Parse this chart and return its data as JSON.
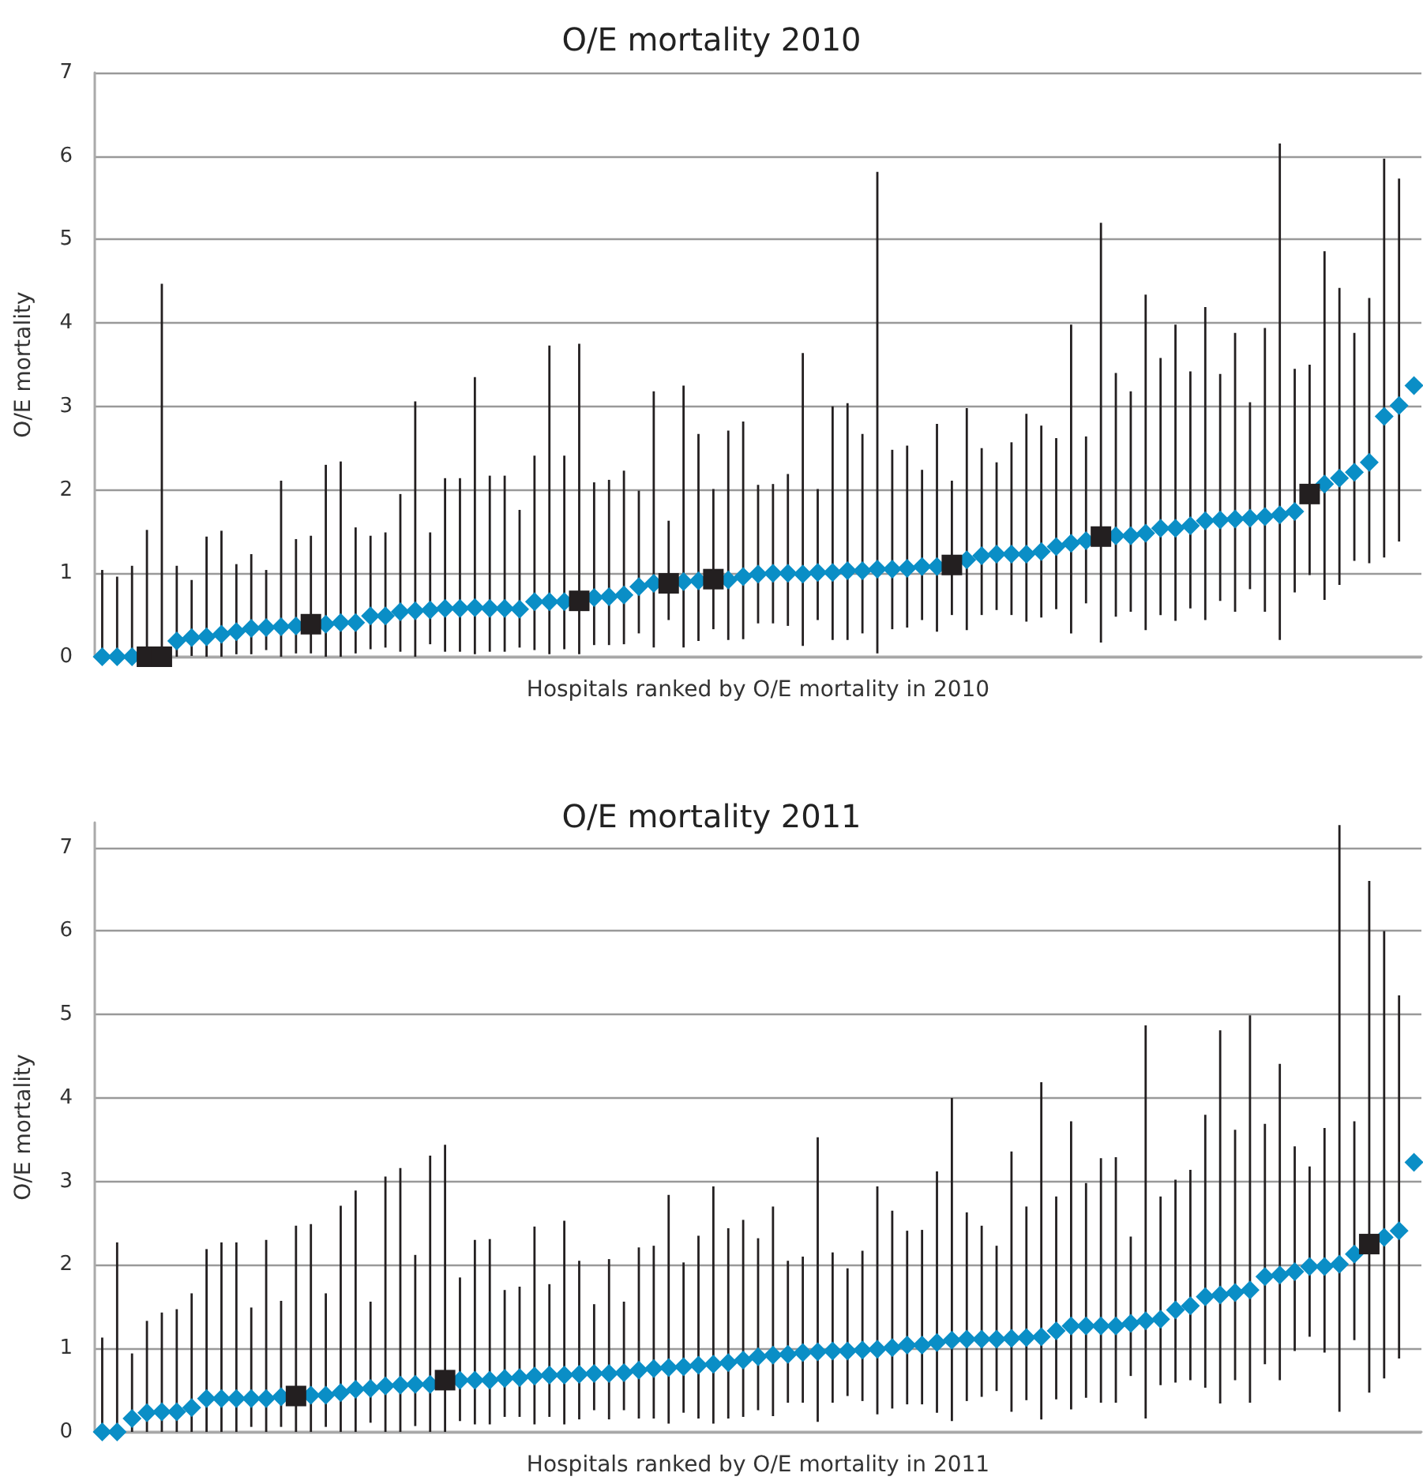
{
  "chart_data": [
    {
      "type": "scatter",
      "title": "O/E mortality 2010",
      "xlabel": "Hospitals ranked by O/E mortality in 2010",
      "ylabel": "O/E mortality",
      "categories": [
        null,
        null,
        null,
        null,
        null,
        null,
        null,
        null,
        null,
        null,
        null,
        null,
        null,
        null,
        null,
        null,
        null,
        null,
        null,
        null,
        null,
        null,
        null,
        null,
        null,
        null,
        null,
        null,
        null,
        null,
        null,
        null,
        null,
        null,
        null,
        null,
        null,
        null,
        null,
        null,
        null,
        null,
        null,
        null,
        null,
        null,
        null,
        null,
        null,
        null,
        null,
        null,
        null,
        null,
        null,
        null,
        null,
        null,
        null,
        null,
        null,
        null,
        null,
        null,
        null,
        null,
        null,
        null,
        null,
        null,
        null,
        null,
        null,
        null,
        null,
        null,
        null,
        null,
        null,
        null,
        null,
        null,
        null,
        null,
        null,
        null,
        null,
        null,
        null
      ],
      "series": [
        {
          "color": "#0a8ec6",
          "marker": "diamond",
          "values": [
            0,
            0,
            0,
            null,
            null,
            0.19,
            0.23,
            0.24,
            0.27,
            0.3,
            0.34,
            0.35,
            0.36,
            0.37,
            null,
            0.39,
            0.41,
            0.41,
            0.49,
            0.49,
            0.54,
            0.55,
            0.56,
            0.58,
            0.58,
            0.59,
            0.58,
            0.58,
            0.57,
            0.66,
            0.66,
            0.66,
            null,
            0.71,
            0.72,
            0.74,
            0.84,
            0.88,
            null,
            0.9,
            0.91,
            null,
            0.92,
            0.96,
            0.99,
            1.0,
            1.0,
            0.99,
            1.01,
            1.01,
            1.03,
            1.03,
            1.05,
            1.05,
            1.06,
            1.08,
            1.08,
            null,
            1.16,
            1.21,
            1.23,
            1.23,
            1.23,
            1.26,
            1.32,
            1.36,
            1.39,
            null,
            1.45,
            1.45,
            1.48,
            1.54,
            1.54,
            1.57,
            1.63,
            1.64,
            1.65,
            1.66,
            1.68,
            1.7,
            1.74,
            null,
            2.07,
            2.14,
            2.21,
            2.33,
            2.88,
            3.01,
            3.25
          ],
          "errors": [
            [
              0,
              1.04
            ],
            [
              0,
              0.96
            ],
            [
              0,
              1.09
            ],
            null,
            null,
            [
              0,
              1.09
            ],
            [
              0.01,
              0.92
            ],
            [
              0,
              1.44
            ],
            [
              0,
              1.51
            ],
            [
              0.03,
              1.11
            ],
            [
              0.03,
              1.23
            ],
            [
              0.08,
              1.04
            ],
            [
              0,
              2.11
            ],
            [
              0.04,
              1.41
            ],
            null,
            [
              0,
              2.3
            ],
            [
              0,
              2.34
            ],
            [
              0.04,
              1.55
            ],
            [
              0.09,
              1.45
            ],
            [
              0.11,
              1.49
            ],
            [
              0.06,
              1.95
            ],
            [
              0,
              3.06
            ],
            [
              0.15,
              1.49
            ],
            [
              0.06,
              2.14
            ],
            [
              0.06,
              2.14
            ],
            [
              0.03,
              3.35
            ],
            [
              0.06,
              2.17
            ],
            [
              0.06,
              2.17
            ],
            [
              0.11,
              1.76
            ],
            [
              0.08,
              2.41
            ],
            [
              0.03,
              3.73
            ],
            [
              0.09,
              2.41
            ],
            null,
            [
              0.14,
              2.09
            ],
            [
              0.14,
              2.12
            ],
            [
              0.15,
              2.23
            ],
            [
              0.28,
              1.99
            ],
            [
              0.11,
              3.18
            ],
            null,
            [
              0.11,
              3.25
            ],
            [
              0.19,
              2.67
            ],
            null,
            [
              0.2,
              2.71
            ],
            [
              0.21,
              2.82
            ],
            [
              0.4,
              2.06
            ],
            [
              0.4,
              2.07
            ],
            [
              0.37,
              2.19
            ],
            [
              0.13,
              3.64
            ],
            [
              0.44,
              2.01
            ],
            [
              0.2,
              3.0
            ],
            [
              0.2,
              3.04
            ],
            [
              0.28,
              2.67
            ],
            [
              0.04,
              5.81
            ],
            [
              0.33,
              2.48
            ],
            [
              0.35,
              2.53
            ],
            [
              0.44,
              2.24
            ],
            [
              0.3,
              2.79
            ],
            null,
            [
              0.32,
              2.98
            ],
            [
              0.5,
              2.5
            ],
            [
              0.56,
              2.33
            ],
            [
              0.5,
              2.57
            ],
            [
              0.42,
              2.91
            ],
            [
              0.47,
              2.77
            ],
            [
              0.57,
              2.62
            ],
            [
              0.28,
              3.98
            ],
            [
              0.64,
              2.64
            ],
            null,
            [
              0.48,
              3.4
            ],
            [
              0.54,
              3.18
            ],
            [
              0.32,
              4.34
            ],
            [
              0.5,
              3.58
            ],
            [
              0.43,
              3.98
            ],
            [
              0.58,
              3.42
            ],
            [
              0.44,
              4.19
            ],
            [
              0.67,
              3.39
            ],
            [
              0.54,
              3.88
            ],
            [
              0.81,
              3.05
            ],
            [
              0.54,
              3.94
            ],
            [
              0.2,
              6.15
            ],
            [
              0.77,
              3.45
            ],
            null,
            [
              0.68,
              4.86
            ],
            [
              0.86,
              4.42
            ],
            [
              1.15,
              3.88
            ],
            [
              1.12,
              4.3
            ],
            [
              1.19,
              5.97
            ],
            [
              1.38,
              5.73
            ],
            null
          ]
        },
        {
          "color": "#231f20",
          "marker": "square",
          "values": [
            null,
            null,
            null,
            0,
            0,
            null,
            null,
            null,
            null,
            null,
            null,
            null,
            null,
            null,
            0.39,
            null,
            null,
            null,
            null,
            null,
            null,
            null,
            null,
            null,
            null,
            null,
            null,
            null,
            null,
            null,
            null,
            null,
            0.67,
            null,
            null,
            null,
            null,
            null,
            0.88,
            null,
            null,
            0.93,
            null,
            null,
            null,
            null,
            null,
            null,
            null,
            null,
            null,
            null,
            null,
            null,
            null,
            null,
            null,
            1.1,
            null,
            null,
            null,
            null,
            null,
            null,
            null,
            null,
            null,
            1.44,
            null,
            null,
            null,
            null,
            null,
            null,
            null,
            null,
            null,
            null,
            null,
            null,
            null,
            1.95,
            null,
            null,
            null,
            null,
            null,
            null,
            null
          ],
          "errors": [
            null,
            null,
            null,
            [
              0,
              1.52
            ],
            [
              0,
              4.47
            ],
            null,
            null,
            null,
            null,
            null,
            null,
            null,
            null,
            null,
            [
              0.04,
              1.45
            ],
            null,
            null,
            null,
            null,
            null,
            null,
            null,
            null,
            null,
            null,
            null,
            null,
            null,
            null,
            null,
            null,
            null,
            [
              0.03,
              3.75
            ],
            null,
            null,
            null,
            null,
            null,
            [
              0.44,
              1.63
            ],
            null,
            null,
            [
              0.33,
              2.01
            ],
            null,
            null,
            null,
            null,
            null,
            null,
            null,
            null,
            null,
            null,
            null,
            null,
            null,
            null,
            null,
            [
              0.5,
              2.11
            ],
            null,
            null,
            null,
            null,
            null,
            null,
            null,
            null,
            null,
            [
              0.17,
              5.2
            ],
            null,
            null,
            null,
            null,
            null,
            null,
            null,
            null,
            null,
            null,
            null,
            null,
            null,
            [
              0.98,
              3.5
            ],
            null,
            null,
            null,
            null,
            null,
            null,
            null
          ]
        }
      ],
      "ylim": [
        0,
        7
      ],
      "yticks": [
        0,
        1,
        2,
        3,
        4,
        5,
        6,
        7
      ],
      "grid": "y",
      "tick_labels": "y"
    },
    {
      "type": "scatter",
      "title": "O/E mortality 2011",
      "xlabel": "Hospitals ranked by O/E mortality in 2011",
      "ylabel": "O/E mortality",
      "categories": [
        null,
        null,
        null,
        null,
        null,
        null,
        null,
        null,
        null,
        null,
        null,
        null,
        null,
        null,
        null,
        null,
        null,
        null,
        null,
        null,
        null,
        null,
        null,
        null,
        null,
        null,
        null,
        null,
        null,
        null,
        null,
        null,
        null,
        null,
        null,
        null,
        null,
        null,
        null,
        null,
        null,
        null,
        null,
        null,
        null,
        null,
        null,
        null,
        null,
        null,
        null,
        null,
        null,
        null,
        null,
        null,
        null,
        null,
        null,
        null,
        null,
        null,
        null,
        null,
        null,
        null,
        null,
        null,
        null,
        null,
        null,
        null,
        null,
        null,
        null,
        null,
        null,
        null,
        null,
        null,
        null,
        null,
        null,
        null,
        null,
        null,
        null,
        null,
        null
      ],
      "series": [
        {
          "color": "#0a8ec6",
          "marker": "diamond",
          "values": [
            0,
            0,
            0.16,
            0.23,
            0.24,
            0.24,
            0.29,
            0.4,
            0.4,
            0.4,
            0.4,
            0.4,
            0.42,
            null,
            0.44,
            0.44,
            0.47,
            0.51,
            0.52,
            0.55,
            0.56,
            0.57,
            0.57,
            null,
            0.62,
            0.62,
            0.62,
            0.64,
            0.65,
            0.67,
            0.68,
            0.68,
            0.69,
            0.7,
            0.7,
            0.71,
            0.74,
            0.76,
            0.77,
            0.78,
            0.8,
            0.81,
            0.83,
            0.86,
            0.9,
            0.92,
            0.93,
            0.95,
            0.96,
            0.97,
            0.97,
            0.98,
            0.99,
            1.01,
            1.04,
            1.04,
            1.07,
            1.1,
            1.11,
            1.11,
            1.11,
            1.12,
            1.13,
            1.14,
            1.21,
            1.27,
            1.27,
            1.27,
            1.27,
            1.3,
            1.33,
            1.35,
            1.46,
            1.51,
            1.62,
            1.64,
            1.67,
            1.7,
            1.86,
            1.88,
            1.92,
            1.98,
            1.98,
            2.01,
            2.13,
            null,
            2.33,
            2.41,
            3.23
          ],
          "errors": [
            [
              0,
              1.13
            ],
            [
              0,
              2.27
            ],
            [
              0,
              0.94
            ],
            [
              0,
              1.33
            ],
            [
              0,
              1.43
            ],
            [
              0,
              1.47
            ],
            [
              0,
              1.66
            ],
            [
              0,
              2.19
            ],
            [
              0,
              2.27
            ],
            [
              0,
              2.27
            ],
            [
              0.06,
              1.49
            ],
            [
              0,
              2.3
            ],
            [
              0.06,
              1.57
            ],
            null,
            [
              0,
              2.49
            ],
            [
              0.06,
              1.66
            ],
            [
              0,
              2.71
            ],
            [
              0,
              2.89
            ],
            [
              0.11,
              1.56
            ],
            [
              0,
              3.06
            ],
            [
              0,
              3.16
            ],
            [
              0.07,
              2.12
            ],
            [
              0,
              3.31
            ],
            null,
            [
              0.13,
              1.85
            ],
            [
              0.09,
              2.3
            ],
            [
              0.09,
              2.31
            ],
            [
              0.18,
              1.7
            ],
            [
              0.18,
              1.74
            ],
            [
              0.09,
              2.46
            ],
            [
              0.18,
              1.77
            ],
            [
              0.09,
              2.53
            ],
            [
              0.15,
              2.05
            ],
            [
              0.26,
              1.53
            ],
            [
              0.15,
              2.07
            ],
            [
              0.26,
              1.56
            ],
            [
              0.16,
              2.21
            ],
            [
              0.16,
              2.23
            ],
            [
              0.1,
              2.84
            ],
            [
              0.23,
              2.03
            ],
            [
              0.16,
              2.35
            ],
            [
              0.1,
              2.94
            ],
            [
              0.16,
              2.44
            ],
            [
              0.18,
              2.54
            ],
            [
              0.26,
              2.32
            ],
            [
              0.19,
              2.7
            ],
            [
              0.35,
              2.05
            ],
            [
              0.35,
              2.1
            ],
            [
              0.12,
              3.53
            ],
            [
              0.35,
              2.15
            ],
            [
              0.43,
              1.96
            ],
            [
              0.37,
              2.17
            ],
            [
              0.21,
              2.94
            ],
            [
              0.28,
              2.65
            ],
            [
              0.33,
              2.41
            ],
            [
              0.33,
              2.42
            ],
            [
              0.23,
              3.12
            ],
            [
              0.13,
              4.0
            ],
            [
              0.37,
              2.63
            ],
            [
              0.42,
              2.47
            ],
            [
              0.49,
              2.23
            ],
            [
              0.24,
              3.36
            ],
            [
              0.38,
              2.7
            ],
            [
              0.15,
              4.19
            ],
            [
              0.39,
              2.82
            ],
            [
              0.27,
              3.72
            ],
            [
              0.41,
              2.98
            ],
            [
              0.35,
              3.28
            ],
            [
              0.35,
              3.29
            ],
            [
              0.67,
              2.34
            ],
            [
              0.16,
              4.87
            ],
            [
              0.56,
              2.82
            ],
            [
              0.59,
              3.02
            ],
            [
              0.62,
              3.14
            ],
            [
              0.53,
              3.8
            ],
            [
              0.34,
              4.81
            ],
            [
              0.62,
              3.62
            ],
            [
              0.35,
              4.99
            ],
            [
              0.81,
              3.69
            ],
            [
              0.62,
              4.41
            ],
            [
              0.97,
              3.42
            ],
            [
              1.14,
              3.18
            ],
            [
              0.95,
              3.64
            ],
            [
              0.24,
              7.27
            ],
            [
              1.1,
              3.72
            ],
            null,
            [
              0.64,
              6.0
            ],
            [
              0.88,
              5.23
            ],
            null
          ]
        },
        {
          "color": "#231f20",
          "marker": "square",
          "values": [
            null,
            null,
            null,
            null,
            null,
            null,
            null,
            null,
            null,
            null,
            null,
            null,
            null,
            0.43,
            null,
            null,
            null,
            null,
            null,
            null,
            null,
            null,
            null,
            0.62,
            null,
            null,
            null,
            null,
            null,
            null,
            null,
            null,
            null,
            null,
            null,
            null,
            null,
            null,
            null,
            null,
            null,
            null,
            null,
            null,
            null,
            null,
            null,
            null,
            null,
            null,
            null,
            null,
            null,
            null,
            null,
            null,
            null,
            null,
            null,
            null,
            null,
            null,
            null,
            null,
            null,
            null,
            null,
            null,
            null,
            null,
            null,
            null,
            null,
            null,
            null,
            null,
            null,
            null,
            null,
            null,
            null,
            null,
            null,
            null,
            null,
            2.25,
            null,
            null,
            null
          ],
          "errors": [
            null,
            null,
            null,
            null,
            null,
            null,
            null,
            null,
            null,
            null,
            null,
            null,
            null,
            [
              0,
              2.47
            ],
            null,
            null,
            null,
            null,
            null,
            null,
            null,
            null,
            null,
            [
              0,
              3.44
            ],
            null,
            null,
            null,
            null,
            null,
            null,
            null,
            null,
            null,
            null,
            null,
            null,
            null,
            null,
            null,
            null,
            null,
            null,
            null,
            null,
            null,
            null,
            null,
            null,
            null,
            null,
            null,
            null,
            null,
            null,
            null,
            null,
            null,
            null,
            null,
            null,
            null,
            null,
            null,
            null,
            null,
            null,
            null,
            null,
            null,
            null,
            null,
            null,
            null,
            null,
            null,
            null,
            null,
            null,
            null,
            null,
            null,
            null,
            null,
            null,
            null,
            [
              0.47,
              6.6
            ],
            null,
            null,
            null
          ]
        }
      ],
      "ylim": [
        0,
        7.3
      ],
      "yticks": [
        0,
        1,
        2,
        3,
        4,
        5,
        6,
        7
      ],
      "grid": "y",
      "tick_labels": "y"
    }
  ]
}
